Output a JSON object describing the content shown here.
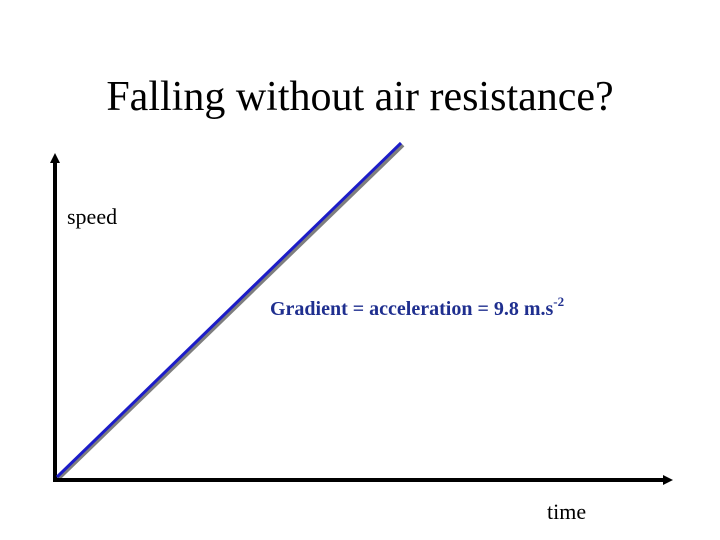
{
  "title": "Falling without air resistance?",
  "y_axis_label": "speed",
  "x_axis_label": "time",
  "annotation": {
    "text": "Gradient = acceleration = 9.8 m.s",
    "superscript": "-2"
  }
}
